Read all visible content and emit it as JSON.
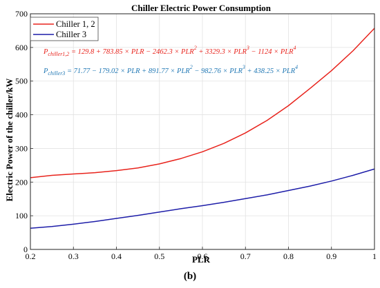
{
  "chart_data": {
    "type": "line",
    "title": "Chiller Electric Power Consumption",
    "xlabel": "PLR",
    "ylabel": "Electric Power of the chiller/kW",
    "xlim": [
      0.2,
      1
    ],
    "ylim": [
      0,
      700
    ],
    "xticks": [
      "0.2",
      "0.3",
      "0.4",
      "0.5",
      "0.6",
      "0.7",
      "0.8",
      "0.9",
      "1"
    ],
    "yticks": [
      "0",
      "100",
      "200",
      "300",
      "400",
      "500",
      "600",
      "700"
    ],
    "grid": true,
    "legend_position": "top-left",
    "x": [
      0.2,
      0.25,
      0.3,
      0.35,
      0.4,
      0.45,
      0.5,
      0.55,
      0.6,
      0.65,
      0.7,
      0.75,
      0.8,
      0.85,
      0.9,
      0.95,
      1.0
    ],
    "series": [
      {
        "name": "Chiller 1, 2",
        "color": "#e8221b",
        "values": [
          213,
          220,
          224,
          228,
          234,
          242,
          254,
          270,
          290,
          315,
          346,
          383,
          427,
          478,
          531,
          590,
          657
        ]
      },
      {
        "name": "Chiller 3",
        "color": "#1c1ca8",
        "values": [
          63,
          68,
          75,
          83,
          92,
          101,
          111,
          121,
          130,
          140,
          151,
          162,
          175,
          188,
          203,
          220,
          239
        ]
      }
    ],
    "annotations": [
      {
        "text": "P_chiller1,2 = 129.8 + 783.85 × PLR − 2462.3 × PLR² + 3329.3 × PLR³ − 1124 × PLR⁴",
        "prefix": "P",
        "subscript": "chiller1,2",
        "rest": " = 129.8 + 783.85 × PLR − 2462.3 × PLR",
        "color": "#e8221b"
      },
      {
        "text": "P_chiller3 = 71.77 − 179.02 × PLR + 891.77 × PLR² − 982.76 × PLR³ + 438.25 × PLR⁴",
        "prefix": "P",
        "subscript": "chiller3",
        "color": "#1f77b4"
      }
    ]
  },
  "caption": "(b)"
}
